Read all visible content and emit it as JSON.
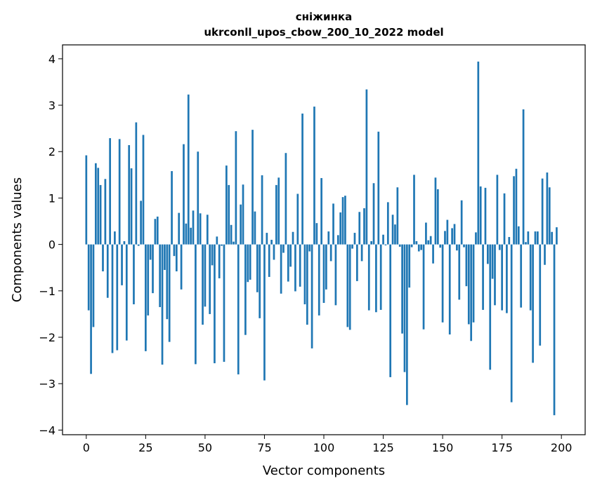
{
  "chart_data": {
    "type": "bar",
    "title": "сніжинка",
    "subtitle": "ukrconll_upos_cbow_200_10_2022 model",
    "xlabel": "Vector components",
    "ylabel": "Components values",
    "xlim": [
      -10,
      210
    ],
    "ylim": [
      -4.1,
      4.3
    ],
    "x_ticks": [
      0,
      25,
      50,
      75,
      100,
      125,
      150,
      175,
      200
    ],
    "y_ticks": [
      -4,
      -3,
      -2,
      -1,
      0,
      1,
      2,
      3,
      4
    ],
    "bar_color": "#1f77b4",
    "grid": false,
    "values": [
      1.92,
      -1.42,
      -2.79,
      -1.78,
      1.75,
      1.65,
      1.28,
      -0.58,
      1.41,
      -1.15,
      2.29,
      -2.34,
      0.28,
      -2.28,
      2.27,
      -0.88,
      0.07,
      -2.07,
      2.14,
      1.64,
      -1.29,
      2.63,
      -0.03,
      0.94,
      2.36,
      -2.3,
      -1.53,
      -0.33,
      -1.05,
      0.55,
      0.6,
      -1.35,
      -2.59,
      -0.55,
      -1.61,
      -2.1,
      1.58,
      -0.25,
      -0.58,
      0.68,
      -0.97,
      2.16,
      0.45,
      3.23,
      0.36,
      0.73,
      -2.58,
      2.0,
      0.67,
      -1.73,
      -1.34,
      0.64,
      -1.5,
      -0.45,
      -2.56,
      0.17,
      -0.73,
      -0.03,
      -2.53,
      1.7,
      1.28,
      0.42,
      0.06,
      2.44,
      -2.8,
      0.86,
      1.29,
      -1.95,
      -0.81,
      -0.76,
      2.47,
      0.71,
      -1.03,
      -1.59,
      1.49,
      -2.93,
      0.25,
      -0.7,
      0.1,
      -0.33,
      1.28,
      1.44,
      -1.06,
      -0.18,
      1.97,
      -0.8,
      -0.48,
      0.27,
      -1.01,
      1.09,
      -0.91,
      2.82,
      -1.29,
      -1.73,
      -0.15,
      -2.24,
      2.97,
      0.46,
      -1.53,
      1.43,
      -1.26,
      -0.97,
      0.28,
      -0.36,
      0.88,
      -1.31,
      0.2,
      0.69,
      1.02,
      1.05,
      -1.78,
      -1.84,
      -0.09,
      0.25,
      -0.79,
      0.7,
      -0.36,
      0.78,
      3.34,
      -1.42,
      0.07,
      1.32,
      -1.46,
      2.43,
      -1.41,
      0.21,
      -0.02,
      0.91,
      -2.86,
      0.64,
      0.43,
      1.23,
      -0.05,
      -1.92,
      -2.75,
      -3.46,
      -0.93,
      -0.06,
      1.5,
      0.07,
      -0.15,
      -0.12,
      -1.83,
      0.47,
      0.09,
      0.18,
      -0.41,
      1.44,
      1.19,
      -0.07,
      -1.68,
      0.29,
      0.53,
      -1.94,
      0.35,
      0.44,
      -0.13,
      -1.19,
      0.95,
      -0.06,
      -0.9,
      -1.72,
      -2.08,
      -1.68,
      0.26,
      3.94,
      1.25,
      -1.41,
      1.22,
      -0.42,
      -2.7,
      -0.74,
      -1.31,
      1.5,
      -0.12,
      -1.42,
      1.1,
      -1.48,
      0.16,
      -3.4,
      1.47,
      1.63,
      0.39,
      -1.36,
      2.91,
      0.05,
      0.28,
      -1.42,
      -2.55,
      0.28,
      0.28,
      -2.18,
      1.42,
      -0.44,
      1.55,
      1.23,
      0.27,
      -3.68,
      0.37
    ]
  }
}
